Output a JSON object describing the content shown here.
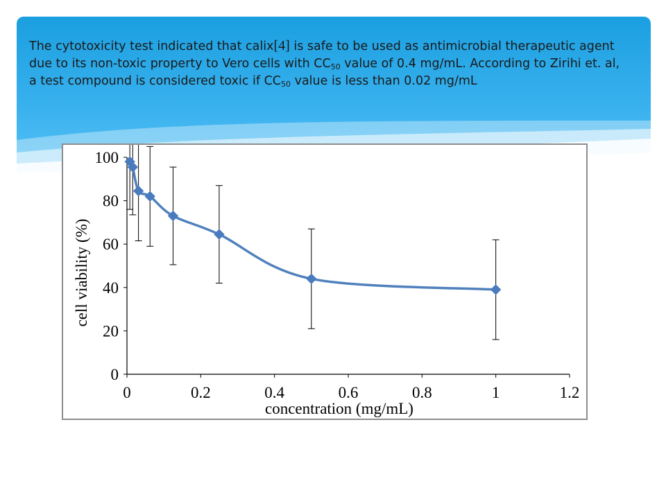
{
  "caption": {
    "p1": "The cytotoxicity test indicated that calix",
    "bracket": "[4]",
    "p2": " is safe to be used as antimicrobial therapeutic agent due to its non-toxic property to Vero cells with CC",
    "sub1": "50",
    "p3": " value of 0.4 mg/mL. According to Zirihi et. al, a test compound is considered toxic if CC",
    "sub2": "50",
    "p4": " value is less than 0.02 mg/mL"
  },
  "colors": {
    "banner_top": "#1b9fe0",
    "banner_bottom": "#5cc4f6",
    "series": "#4f81bd",
    "marker": "#4a7bbf",
    "axis": "#000000",
    "error_bar": "#000000"
  },
  "chart_data": {
    "type": "line",
    "title": "",
    "xlabel": "concentration (mg/mL)",
    "ylabel": "cell viability (%)",
    "xlim": [
      0,
      1.2
    ],
    "ylim": [
      0,
      100
    ],
    "xticks": [
      "0",
      "0.2",
      "0.4",
      "0.6",
      "0.8",
      "1",
      "1.2"
    ],
    "yticks": [
      "0",
      "20",
      "40",
      "60",
      "80",
      "100"
    ],
    "grid": false,
    "legend": "none",
    "smooth": true,
    "marker": "diamond",
    "series": [
      {
        "name": "",
        "x": [
          0.0078,
          0.0156,
          0.03125,
          0.0625,
          0.125,
          0.25,
          0.5,
          1.0
        ],
        "y": [
          98,
          95.5,
          84.5,
          82,
          73,
          64.5,
          44,
          39
        ],
        "error": [
          22,
          22,
          23,
          23,
          22.5,
          22.5,
          23,
          23
        ]
      }
    ]
  }
}
